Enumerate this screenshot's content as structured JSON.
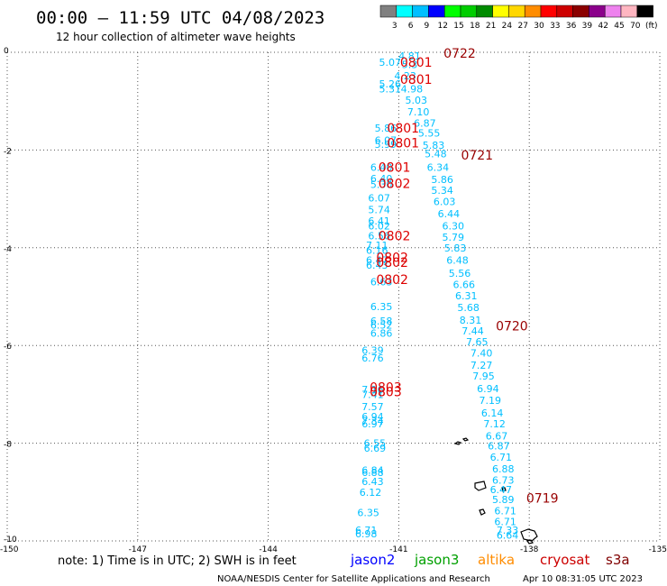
{
  "header": {
    "title": "00:00 — 11:59 UTC 04/08/2023",
    "subtitle": "12 hour collection of altimeter wave heights"
  },
  "legend": {
    "unit": "(ft)",
    "bins": [
      {
        "color": "#808080",
        "label": "3"
      },
      {
        "color": "#00ffff",
        "label": "6"
      },
      {
        "color": "#00bfff",
        "label": "9"
      },
      {
        "color": "#0000ff",
        "label": "12"
      },
      {
        "color": "#00ff00",
        "label": "15"
      },
      {
        "color": "#00cd00",
        "label": "18"
      },
      {
        "color": "#008b00",
        "label": "21"
      },
      {
        "color": "#ffff00",
        "label": "24"
      },
      {
        "color": "#ffd700",
        "label": "27"
      },
      {
        "color": "#ff8c00",
        "label": "30"
      },
      {
        "color": "#ff0000",
        "label": "33"
      },
      {
        "color": "#cd0000",
        "label": "36"
      },
      {
        "color": "#8b0000",
        "label": "39"
      },
      {
        "color": "#8b008b",
        "label": "42"
      },
      {
        "color": "#ee82ee",
        "label": "45"
      },
      {
        "color": "#ffb6c1",
        "label": "70"
      },
      {
        "color": "#000000",
        "label": ""
      }
    ]
  },
  "footer": {
    "note": "note: 1) Time is in UTC; 2) SWH is in feet",
    "satellites": [
      {
        "name": "jason2",
        "color": "#0000ff"
      },
      {
        "name": "jason3",
        "color": "#00a000"
      },
      {
        "name": "altika",
        "color": "#ff8c00"
      },
      {
        "name": "cryosat",
        "color": "#cc0000"
      },
      {
        "name": "s3a",
        "color": "#800000"
      }
    ],
    "credit": "NOAA/NESDIS Center for Satellite Applications and Research",
    "timestamp": "Apr 10 08:31:05 UTC 2023"
  },
  "chart_data": {
    "type": "scatter",
    "title": "00:00 — 11:59 UTC 04/08/2023",
    "subtitle": "12 hour collection of altimeter wave heights",
    "xlabel": "",
    "ylabel": "",
    "xlim": [
      -150,
      -135
    ],
    "ylim": [
      -10,
      0
    ],
    "grid": true,
    "x_ticks": [
      "-150",
      "-147",
      "-144",
      "-141",
      "-138",
      "-135"
    ],
    "y_ticks": [
      "0",
      "-2",
      "-4",
      "-6",
      "-8",
      "-10"
    ],
    "point_color": "#00bfff",
    "series": [
      {
        "points": [
          {
            "x": -140.75,
            "y": -0.07,
            "v": "4.81"
          },
          {
            "x": -141.2,
            "y": -0.2,
            "v": "5.07"
          },
          {
            "x": -140.75,
            "y": -0.25,
            "v": "5.3"
          },
          {
            "x": -140.85,
            "y": -0.48,
            "v": "4.23"
          },
          {
            "x": -141.2,
            "y": -0.65,
            "v": "5.26"
          },
          {
            "x": -141.2,
            "y": -0.75,
            "v": "5.31"
          },
          {
            "x": -140.7,
            "y": -0.75,
            "v": "4.98"
          },
          {
            "x": -140.6,
            "y": -0.98,
            "v": "5.03"
          },
          {
            "x": -140.55,
            "y": -1.22,
            "v": "7.10"
          },
          {
            "x": -140.4,
            "y": -1.45,
            "v": "6.87"
          },
          {
            "x": -141.3,
            "y": -1.55,
            "v": "5.86"
          },
          {
            "x": -140.3,
            "y": -1.65,
            "v": "5.55"
          },
          {
            "x": -141.3,
            "y": -1.8,
            "v": "6.07"
          },
          {
            "x": -141.3,
            "y": -1.88,
            "v": "5.99"
          },
          {
            "x": -140.2,
            "y": -1.9,
            "v": "5.83"
          },
          {
            "x": -140.15,
            "y": -2.08,
            "v": "5.48"
          },
          {
            "x": -141.4,
            "y": -2.35,
            "v": "6.40"
          },
          {
            "x": -140.1,
            "y": -2.35,
            "v": "6.34"
          },
          {
            "x": -141.4,
            "y": -2.58,
            "v": "6.40"
          },
          {
            "x": -140.0,
            "y": -2.6,
            "v": "5.86"
          },
          {
            "x": -141.4,
            "y": -2.7,
            "v": "5.30"
          },
          {
            "x": -140.0,
            "y": -2.82,
            "v": "5.34"
          },
          {
            "x": -141.45,
            "y": -2.98,
            "v": "6.07"
          },
          {
            "x": -139.95,
            "y": -3.05,
            "v": "6.03"
          },
          {
            "x": -141.45,
            "y": -3.22,
            "v": "5.74"
          },
          {
            "x": -139.85,
            "y": -3.3,
            "v": "6.44"
          },
          {
            "x": -141.45,
            "y": -3.45,
            "v": "6.41"
          },
          {
            "x": -141.45,
            "y": -3.55,
            "v": "6.02"
          },
          {
            "x": -139.75,
            "y": -3.55,
            "v": "6.30"
          },
          {
            "x": -141.45,
            "y": -3.75,
            "v": "6.56"
          },
          {
            "x": -139.75,
            "y": -3.78,
            "v": "5.79"
          },
          {
            "x": -141.5,
            "y": -3.95,
            "v": "7.11"
          },
          {
            "x": -141.5,
            "y": -4.05,
            "v": "6.16"
          },
          {
            "x": -139.7,
            "y": -4.0,
            "v": "5.83"
          },
          {
            "x": -141.5,
            "y": -4.25,
            "v": "6.47"
          },
          {
            "x": -141.5,
            "y": -4.35,
            "v": "6.43"
          },
          {
            "x": -139.65,
            "y": -4.25,
            "v": "6.48"
          },
          {
            "x": -139.6,
            "y": -4.52,
            "v": "5.56"
          },
          {
            "x": -141.4,
            "y": -4.7,
            "v": "6.63"
          },
          {
            "x": -139.5,
            "y": -4.75,
            "v": "6.66"
          },
          {
            "x": -139.45,
            "y": -4.98,
            "v": "6.31"
          },
          {
            "x": -141.4,
            "y": -5.2,
            "v": "6.35"
          },
          {
            "x": -139.4,
            "y": -5.22,
            "v": "5.68"
          },
          {
            "x": -139.35,
            "y": -5.48,
            "v": "8.31"
          },
          {
            "x": -141.4,
            "y": -5.5,
            "v": "6.58"
          },
          {
            "x": -141.4,
            "y": -5.58,
            "v": "6.52"
          },
          {
            "x": -139.3,
            "y": -5.7,
            "v": "7.44"
          },
          {
            "x": -141.4,
            "y": -5.75,
            "v": "6.86"
          },
          {
            "x": -139.2,
            "y": -5.92,
            "v": "7.65"
          },
          {
            "x": -141.6,
            "y": -6.1,
            "v": "6.39"
          },
          {
            "x": -139.1,
            "y": -6.15,
            "v": "7.40"
          },
          {
            "x": -141.6,
            "y": -6.25,
            "v": "6.76"
          },
          {
            "x": -139.1,
            "y": -6.4,
            "v": "7.27"
          },
          {
            "x": -139.05,
            "y": -6.62,
            "v": "7.95"
          },
          {
            "x": -141.6,
            "y": -6.9,
            "v": "7.16"
          },
          {
            "x": -141.6,
            "y": -7.0,
            "v": "7.41"
          },
          {
            "x": -138.95,
            "y": -6.88,
            "v": "6.94"
          },
          {
            "x": -138.9,
            "y": -7.12,
            "v": "7.19"
          },
          {
            "x": -141.6,
            "y": -7.25,
            "v": "7.57"
          },
          {
            "x": -141.6,
            "y": -7.45,
            "v": "6.94"
          },
          {
            "x": -138.85,
            "y": -7.38,
            "v": "6.14"
          },
          {
            "x": -141.6,
            "y": -7.55,
            "v": "7.34"
          },
          {
            "x": -141.6,
            "y": -7.6,
            "v": "6.97"
          },
          {
            "x": -138.8,
            "y": -7.6,
            "v": "7.12"
          },
          {
            "x": -138.75,
            "y": -7.85,
            "v": "6.67"
          },
          {
            "x": -141.55,
            "y": -8.0,
            "v": "6.55"
          },
          {
            "x": -138.7,
            "y": -8.05,
            "v": "6.87"
          },
          {
            "x": -141.55,
            "y": -8.1,
            "v": "6.69"
          },
          {
            "x": -138.65,
            "y": -8.28,
            "v": "6.71"
          },
          {
            "x": -141.6,
            "y": -8.55,
            "v": "6.84"
          },
          {
            "x": -141.6,
            "y": -8.6,
            "v": "6.88"
          },
          {
            "x": -138.6,
            "y": -8.52,
            "v": "6.88"
          },
          {
            "x": -141.6,
            "y": -8.78,
            "v": "6.43"
          },
          {
            "x": -138.6,
            "y": -8.75,
            "v": "6.73"
          },
          {
            "x": -138.65,
            "y": -8.95,
            "v": "6.47"
          },
          {
            "x": -141.65,
            "y": -9.0,
            "v": "6.12"
          },
          {
            "x": -138.6,
            "y": -9.15,
            "v": "5.89"
          },
          {
            "x": -141.7,
            "y": -9.42,
            "v": "6.35"
          },
          {
            "x": -138.55,
            "y": -9.38,
            "v": "6.71"
          },
          {
            "x": -138.55,
            "y": -9.6,
            "v": "6.71"
          },
          {
            "x": -141.75,
            "y": -9.78,
            "v": "6.71"
          },
          {
            "x": -141.75,
            "y": -9.85,
            "v": "6.98"
          },
          {
            "x": -138.5,
            "y": -9.78,
            "v": "7.33"
          },
          {
            "x": -138.5,
            "y": -9.88,
            "v": "6.64"
          }
        ]
      }
    ],
    "time_labels": [
      {
        "x": -139.6,
        "y": -0.02,
        "text": "0722",
        "color": "#990000"
      },
      {
        "x": -140.6,
        "y": -0.2,
        "text": "0801",
        "color": "#dd0000"
      },
      {
        "x": -140.6,
        "y": -0.55,
        "text": "0801",
        "color": "#dd0000"
      },
      {
        "x": -140.9,
        "y": -1.55,
        "text": "0801",
        "color": "#dd0000"
      },
      {
        "x": -140.9,
        "y": -1.85,
        "text": "0801",
        "color": "#dd0000"
      },
      {
        "x": -139.2,
        "y": -2.1,
        "text": "0721",
        "color": "#990000"
      },
      {
        "x": -141.1,
        "y": -2.35,
        "text": "0801",
        "color": "#dd0000"
      },
      {
        "x": -141.1,
        "y": -2.68,
        "text": "0802",
        "color": "#dd0000"
      },
      {
        "x": -141.1,
        "y": -3.75,
        "text": "0802",
        "color": "#dd0000"
      },
      {
        "x": -141.15,
        "y": -4.2,
        "text": "0802",
        "color": "#dd0000"
      },
      {
        "x": -141.15,
        "y": -4.3,
        "text": "0802",
        "color": "#dd0000"
      },
      {
        "x": -141.15,
        "y": -4.65,
        "text": "0802",
        "color": "#dd0000"
      },
      {
        "x": -138.4,
        "y": -5.6,
        "text": "0720",
        "color": "#990000"
      },
      {
        "x": -141.3,
        "y": -6.85,
        "text": "0803",
        "color": "#dd0000"
      },
      {
        "x": -141.3,
        "y": -6.95,
        "text": "0803",
        "color": "#dd0000"
      },
      {
        "x": -137.7,
        "y": -9.12,
        "text": "0719",
        "color": "#990000"
      }
    ]
  }
}
